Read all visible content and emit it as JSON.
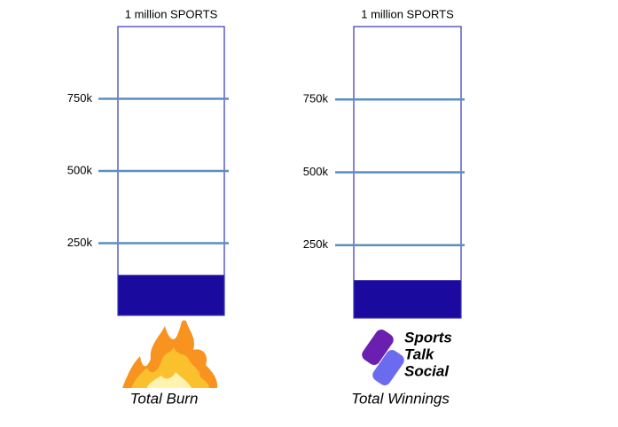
{
  "chart_data": [
    {
      "type": "bar",
      "title": "1 million SPORTS",
      "categories": [
        "Total Burn"
      ],
      "values": [
        140000
      ],
      "color": "#1a0a9e",
      "ylim": [
        0,
        1000000
      ],
      "yticks": [
        {
          "value": 250000,
          "label": "250k"
        },
        {
          "value": 500000,
          "label": "500k"
        },
        {
          "value": 750000,
          "label": "750k"
        }
      ],
      "grid": true
    },
    {
      "type": "bar",
      "title": "1 million SPORTS",
      "categories": [
        "Total Winnings"
      ],
      "values": [
        130000
      ],
      "color": "#1a0a9e",
      "ylim": [
        0,
        1000000
      ],
      "yticks": [
        {
          "value": 250000,
          "label": "250k"
        },
        {
          "value": 500000,
          "label": "500k"
        },
        {
          "value": 750000,
          "label": "750k"
        }
      ],
      "grid": true,
      "logo_text": [
        "Sports",
        "Talk",
        "Social"
      ]
    }
  ]
}
